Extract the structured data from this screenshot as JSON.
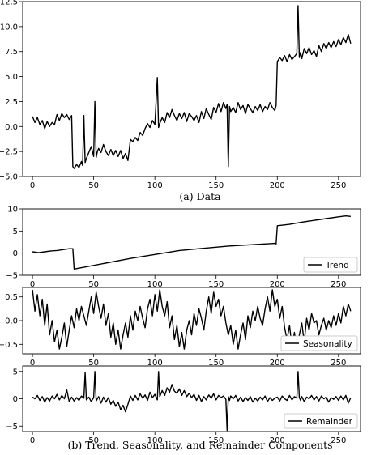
{
  "captions": {
    "top": "(a) Data",
    "bottom": "(b) Trend, Seasonality, and Remainder Components"
  },
  "chart_data": [
    {
      "type": "line",
      "id": "data",
      "title": "",
      "xlim": [
        -8,
        268
      ],
      "ylim": [
        -5.0,
        12.5
      ],
      "xticks": [
        0,
        50,
        100,
        150,
        200,
        250
      ],
      "yticks": [
        -5.0,
        -2.5,
        0.0,
        2.5,
        5.0,
        7.5,
        10.0,
        12.5
      ],
      "ytick_labels": [
        "−5.0",
        "−2.5",
        "0.0",
        "2.5",
        "5.0",
        "7.5",
        "10.0",
        "12.5"
      ],
      "legend": null,
      "color": "#000000",
      "x": [
        0,
        2,
        4,
        6,
        8,
        10,
        12,
        14,
        16,
        18,
        20,
        22,
        24,
        26,
        28,
        30,
        32,
        33,
        34,
        36,
        38,
        40,
        41,
        42,
        43,
        44,
        46,
        48,
        50,
        51,
        52,
        53,
        54,
        56,
        58,
        60,
        62,
        64,
        66,
        68,
        70,
        72,
        74,
        76,
        78,
        80,
        82,
        84,
        86,
        88,
        90,
        92,
        94,
        96,
        98,
        100,
        102,
        103,
        104,
        106,
        108,
        110,
        112,
        114,
        116,
        118,
        120,
        122,
        124,
        126,
        128,
        130,
        132,
        134,
        136,
        138,
        140,
        142,
        144,
        146,
        148,
        150,
        152,
        154,
        156,
        158,
        159,
        160,
        161,
        162,
        164,
        166,
        168,
        170,
        172,
        174,
        176,
        178,
        180,
        182,
        184,
        186,
        188,
        190,
        192,
        194,
        196,
        198,
        199,
        200,
        202,
        204,
        206,
        208,
        210,
        212,
        214,
        216,
        217,
        218,
        219,
        220,
        222,
        224,
        226,
        228,
        230,
        232,
        234,
        236,
        238,
        240,
        242,
        244,
        246,
        248,
        250,
        252,
        254,
        256,
        258,
        260
      ],
      "y": [
        1.0,
        0.4,
        0.9,
        0.2,
        0.6,
        -0.2,
        0.5,
        0.0,
        0.4,
        0.2,
        1.2,
        0.6,
        1.3,
        0.9,
        1.2,
        0.7,
        1.1,
        -4.0,
        -4.2,
        -3.8,
        -4.1,
        -3.5,
        -3.9,
        1.1,
        -3.6,
        -3.2,
        -2.6,
        -2.0,
        -3.0,
        2.5,
        -3.1,
        -2.5,
        -2.2,
        -2.6,
        -1.8,
        -2.5,
        -2.9,
        -2.3,
        -2.9,
        -2.4,
        -3.0,
        -2.4,
        -3.2,
        -2.7,
        -3.4,
        -1.3,
        -1.5,
        -1.1,
        -1.4,
        -0.6,
        -0.9,
        -0.2,
        0.3,
        -0.1,
        0.6,
        0.2,
        4.9,
        -0.1,
        0.3,
        0.9,
        0.4,
        1.4,
        0.9,
        1.7,
        1.1,
        0.6,
        1.3,
        0.8,
        1.4,
        0.5,
        1.3,
        1.0,
        0.6,
        1.1,
        0.4,
        1.5,
        0.8,
        1.8,
        1.2,
        0.7,
        1.9,
        1.4,
        2.3,
        1.5,
        2.4,
        1.8,
        2.2,
        -4.0,
        2.0,
        1.5,
        1.9,
        1.4,
        2.4,
        1.7,
        2.1,
        1.3,
        2.2,
        1.8,
        1.4,
        2.0,
        1.6,
        2.2,
        1.5,
        2.0,
        1.7,
        2.4,
        1.9,
        1.6,
        2.1,
        6.5,
        6.9,
        6.6,
        7.1,
        6.5,
        7.2,
        6.7,
        7.0,
        7.3,
        12.1,
        6.9,
        7.4,
        6.8,
        7.8,
        7.3,
        7.9,
        7.2,
        7.6,
        7.0,
        8.1,
        7.5,
        8.3,
        7.8,
        8.4,
        7.9,
        8.5,
        8.0,
        8.7,
        8.2,
        8.9,
        8.4,
        9.2,
        8.3
      ]
    },
    {
      "type": "line",
      "id": "trend",
      "xlim": [
        -8,
        268
      ],
      "ylim": [
        -5,
        10
      ],
      "xticks": [
        0,
        50,
        100,
        150,
        200,
        250
      ],
      "yticks": [
        -5,
        0,
        5,
        10
      ],
      "ytick_labels": [
        "−5",
        "0",
        "5",
        "10"
      ],
      "legend": "Trend",
      "legend_position": "lower-right",
      "color": "#000000",
      "x": [
        0,
        5,
        10,
        15,
        20,
        25,
        30,
        33,
        34,
        80,
        120,
        160,
        198,
        199,
        200,
        210,
        220,
        230,
        240,
        250,
        256,
        260
      ],
      "y": [
        0.3,
        0.1,
        0.3,
        0.5,
        0.6,
        0.8,
        1.0,
        1.0,
        -3.6,
        -1.2,
        0.6,
        1.6,
        2.2,
        2.1,
        6.2,
        6.5,
        7.0,
        7.4,
        7.8,
        8.2,
        8.4,
        8.3
      ]
    },
    {
      "type": "line",
      "id": "seasonality",
      "xlim": [
        -8,
        268
      ],
      "ylim": [
        -0.7,
        0.7
      ],
      "xticks": [
        0,
        50,
        100,
        150,
        200,
        250
      ],
      "yticks": [
        -0.5,
        0.0,
        0.5
      ],
      "ytick_labels": [
        "−0.5",
        "0.0",
        "0.5"
      ],
      "legend": "Seasonality",
      "legend_position": "lower-right",
      "color": "#000000",
      "x": [
        0,
        2,
        4,
        6,
        8,
        10,
        12,
        14,
        16,
        18,
        20,
        22,
        24,
        26,
        28,
        30,
        32,
        34,
        36,
        38,
        40,
        42,
        44,
        46,
        48,
        50,
        52,
        54,
        56,
        58,
        60,
        62,
        64,
        66,
        68,
        70,
        72,
        74,
        76,
        78,
        80,
        82,
        84,
        86,
        88,
        90,
        92,
        94,
        96,
        98,
        100,
        102,
        104,
        106,
        108,
        110,
        112,
        114,
        116,
        118,
        120,
        122,
        124,
        126,
        128,
        130,
        132,
        134,
        136,
        138,
        140,
        142,
        144,
        146,
        148,
        150,
        152,
        154,
        156,
        158,
        160,
        162,
        164,
        166,
        168,
        170,
        172,
        174,
        176,
        178,
        180,
        182,
        184,
        186,
        188,
        190,
        192,
        194,
        196,
        198,
        200,
        202,
        204,
        206,
        208,
        210,
        212,
        214,
        216,
        218,
        220,
        222,
        224,
        226,
        228,
        230,
        232,
        234,
        236,
        238,
        240,
        242,
        244,
        246,
        248,
        250,
        252,
        254,
        256,
        258,
        260
      ],
      "y": [
        0.65,
        0.2,
        0.55,
        0.1,
        0.45,
        -0.1,
        0.35,
        -0.3,
        0.0,
        -0.45,
        -0.2,
        -0.6,
        -0.35,
        -0.05,
        -0.55,
        -0.2,
        0.1,
        -0.15,
        0.25,
        0.0,
        0.3,
        0.1,
        -0.1,
        0.2,
        0.5,
        0.15,
        0.6,
        0.3,
        0.05,
        0.35,
        -0.1,
        0.15,
        -0.35,
        -0.05,
        -0.5,
        -0.2,
        -0.6,
        -0.3,
        -0.05,
        -0.35,
        0.1,
        -0.2,
        0.2,
        0.0,
        0.3,
        0.05,
        -0.15,
        0.25,
        0.45,
        0.1,
        0.55,
        0.2,
        0.65,
        0.3,
        0.1,
        0.4,
        -0.15,
        0.1,
        -0.4,
        -0.1,
        -0.55,
        -0.25,
        -0.6,
        -0.2,
        0.0,
        -0.3,
        0.15,
        -0.1,
        0.25,
        0.05,
        -0.2,
        0.2,
        0.5,
        0.15,
        0.6,
        0.3,
        0.45,
        0.1,
        0.3,
        -0.05,
        -0.3,
        -0.1,
        -0.5,
        -0.2,
        -0.6,
        -0.3,
        -0.05,
        -0.4,
        0.1,
        -0.15,
        0.2,
        0.0,
        0.3,
        0.05,
        -0.1,
        0.25,
        0.5,
        0.2,
        0.65,
        0.3,
        0.45,
        0.05,
        0.3,
        -0.15,
        -0.4,
        -0.1,
        -0.55,
        -0.25,
        -0.6,
        -0.3,
        -0.05,
        -0.45,
        0.05,
        -0.2,
        0.15,
        -0.05,
        0.0,
        -0.3,
        -0.1,
        0.05,
        -0.2,
        0.0,
        -0.15,
        0.1,
        -0.1,
        0.15,
        -0.05,
        0.3,
        0.1,
        0.35,
        0.2
      ]
    },
    {
      "type": "line",
      "id": "remainder",
      "xlim": [
        -8,
        268
      ],
      "ylim": [
        -6,
        6
      ],
      "xticks": [
        0,
        50,
        100,
        150,
        200,
        250
      ],
      "yticks": [
        -5,
        0,
        5
      ],
      "ytick_labels": [
        "−5",
        "0",
        "5"
      ],
      "legend": "Remainder",
      "legend_position": "lower-right",
      "color": "#000000",
      "x": [
        0,
        2,
        4,
        6,
        8,
        10,
        12,
        14,
        16,
        18,
        20,
        22,
        24,
        26,
        28,
        30,
        32,
        34,
        36,
        38,
        40,
        42,
        43,
        44,
        46,
        48,
        50,
        51,
        52,
        54,
        56,
        58,
        60,
        62,
        64,
        66,
        68,
        70,
        72,
        74,
        76,
        78,
        80,
        82,
        84,
        86,
        88,
        90,
        92,
        94,
        96,
        98,
        100,
        102,
        103,
        104,
        106,
        108,
        110,
        112,
        114,
        116,
        118,
        120,
        122,
        124,
        126,
        128,
        130,
        132,
        134,
        136,
        138,
        140,
        142,
        144,
        146,
        148,
        150,
        152,
        154,
        156,
        158,
        159,
        160,
        161,
        162,
        164,
        166,
        168,
        170,
        172,
        174,
        176,
        178,
        180,
        182,
        184,
        186,
        188,
        190,
        192,
        194,
        196,
        198,
        200,
        202,
        204,
        206,
        208,
        210,
        212,
        214,
        216,
        217,
        218,
        219,
        220,
        222,
        224,
        226,
        228,
        230,
        232,
        234,
        236,
        238,
        240,
        242,
        244,
        246,
        248,
        250,
        252,
        254,
        256,
        258,
        260
      ],
      "y": [
        0.3,
        0.0,
        0.6,
        -0.3,
        0.4,
        -0.6,
        0.2,
        -0.4,
        0.5,
        0.0,
        0.8,
        -0.2,
        0.6,
        0.0,
        1.6,
        -0.5,
        0.3,
        -0.4,
        0.2,
        -0.3,
        0.5,
        0.1,
        4.8,
        -0.2,
        0.3,
        -0.5,
        0.2,
        5.0,
        -0.4,
        0.4,
        -0.8,
        0.3,
        -0.6,
        0.2,
        -1.0,
        -0.3,
        -1.4,
        -0.6,
        -2.0,
        -1.2,
        -2.4,
        -1.0,
        0.5,
        -0.3,
        0.6,
        -0.2,
        0.9,
        0.1,
        0.7,
        -0.3,
        1.2,
        0.2,
        0.8,
        -0.2,
        5.0,
        0.4,
        1.5,
        0.6,
        2.0,
        1.2,
        2.6,
        1.4,
        1.0,
        1.8,
        0.6,
        1.5,
        0.4,
        1.0,
        0.2,
        0.8,
        -0.3,
        0.6,
        -0.5,
        0.4,
        -0.2,
        0.7,
        0.1,
        0.9,
        -0.2,
        0.6,
        0.2,
        0.5,
        -0.1,
        -5.8,
        0.4,
        -0.3,
        0.5,
        0.0,
        0.6,
        -0.4,
        0.3,
        -0.5,
        0.2,
        -0.3,
        0.4,
        -0.6,
        0.1,
        -0.4,
        0.3,
        -0.2,
        0.5,
        -0.5,
        0.2,
        -0.3,
        0.1,
        0.3,
        -0.4,
        0.5,
        0.0,
        -0.3,
        0.6,
        -0.2,
        0.4,
        0.1,
        5.0,
        0.2,
        -0.3,
        0.4,
        -0.5,
        0.3,
        0.0,
        0.6,
        -0.2,
        0.4,
        -0.4,
        0.5,
        0.0,
        0.3,
        -0.6,
        0.2,
        -0.1,
        0.4,
        -0.3,
        0.5,
        -0.2,
        0.6,
        -0.8,
        0.2
      ]
    }
  ]
}
